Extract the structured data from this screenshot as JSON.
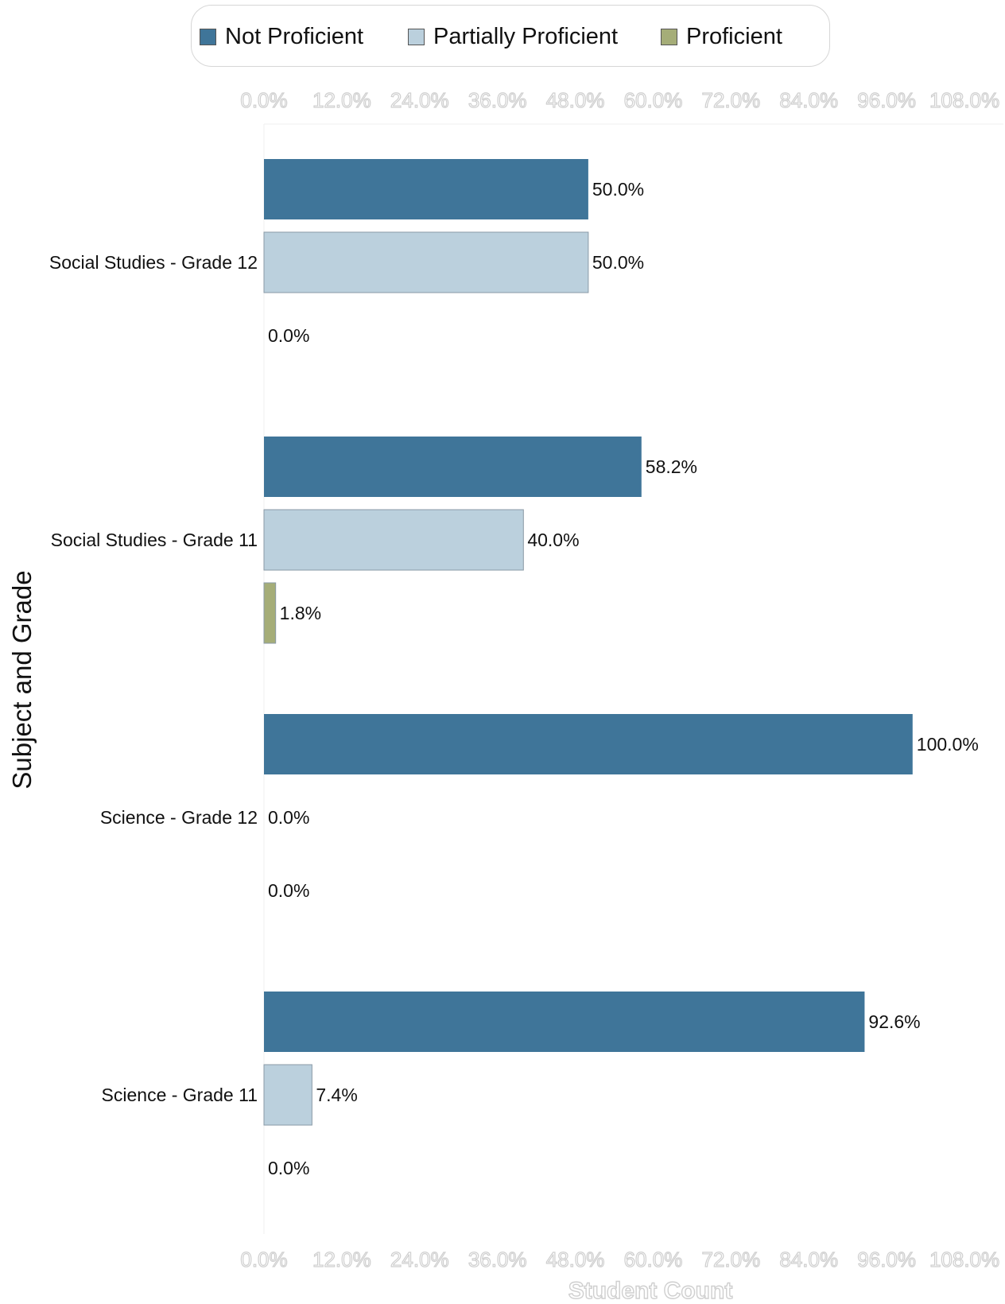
{
  "chart_data": {
    "type": "bar",
    "orientation": "horizontal",
    "categories": [
      "Social Studies - Grade 12",
      "Social Studies - Grade 11",
      "Science - Grade 12",
      "Science - Grade 11"
    ],
    "series": [
      {
        "name": "Not Proficient",
        "color": "#3f7599",
        "values": [
          50.0,
          58.2,
          100.0,
          92.6
        ]
      },
      {
        "name": "Partially Proficient",
        "color": "#bbd0dd",
        "values": [
          50.0,
          40.0,
          0.0,
          7.4
        ]
      },
      {
        "name": "Proficient",
        "color": "#a5ad78",
        "values": [
          0.0,
          1.8,
          0.0,
          0.0
        ]
      }
    ],
    "data_labels": [
      [
        "50.0%",
        "58.2%",
        "100.0%",
        "92.6%"
      ],
      [
        "50.0%",
        "40.0%",
        "0.0%",
        "7.4%"
      ],
      [
        "0.0%",
        "1.8%",
        "0.0%",
        "0.0%"
      ]
    ],
    "xticks": [
      "0.0%",
      "12.0%",
      "24.0%",
      "36.0%",
      "48.0%",
      "60.0%",
      "72.0%",
      "84.0%",
      "96.0%",
      "108.0%"
    ],
    "xtick_values": [
      0,
      12,
      24,
      36,
      48,
      60,
      72,
      84,
      96,
      108
    ],
    "xlim": [
      0,
      114
    ],
    "xlabel": "Student Count",
    "ylabel": "Subject and Grade",
    "legend_position": "top",
    "grid": false
  }
}
